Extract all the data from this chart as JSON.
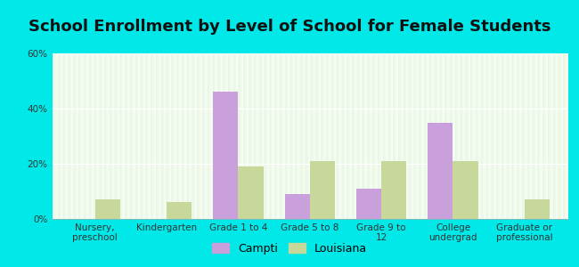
{
  "title": "School Enrollment by Level of School for Female Students",
  "categories": [
    "Nursery,\npreschool",
    "Kindergarten",
    "Grade 1 to 4",
    "Grade 5 to 8",
    "Grade 9 to\n12",
    "College\nundergrad",
    "Graduate or\nprofessional"
  ],
  "campti_values": [
    0,
    0,
    46,
    9,
    11,
    35,
    0
  ],
  "louisiana_values": [
    7,
    6,
    19,
    21,
    21,
    21,
    7
  ],
  "campti_color": "#c9a0dc",
  "louisiana_color": "#c8d89a",
  "background_color": "#00e8e8",
  "grad_top_color": "#e8f5e0",
  "grad_bottom_color": "#f8fff8",
  "ylim": [
    0,
    60
  ],
  "yticks": [
    0,
    20,
    40,
    60
  ],
  "ytick_labels": [
    "0%",
    "20%",
    "40%",
    "60%"
  ],
  "bar_width": 0.35,
  "legend_campti": "Campti",
  "legend_louisiana": "Louisiana",
  "title_fontsize": 13,
  "tick_fontsize": 7.5,
  "legend_fontsize": 9
}
